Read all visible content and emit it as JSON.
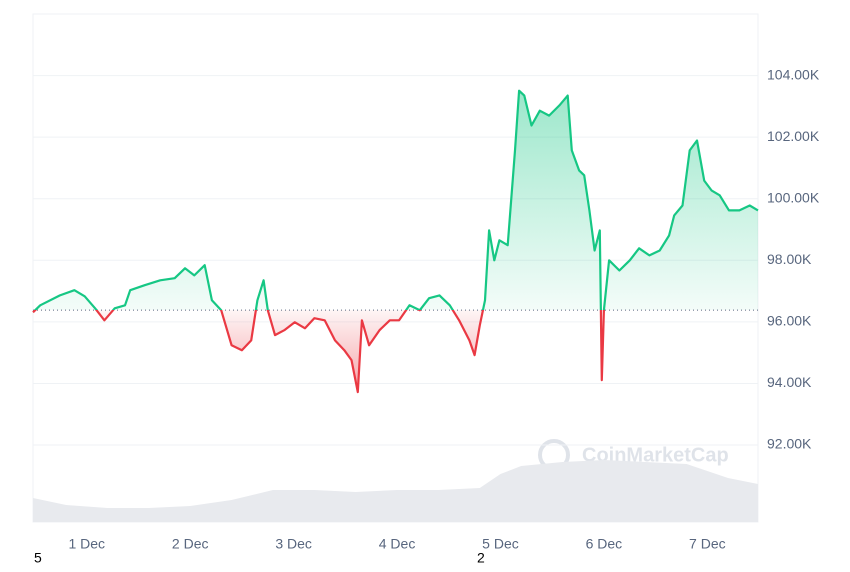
{
  "chart_data": {
    "type": "line",
    "x": [
      0.48,
      0.55,
      0.74,
      0.88,
      0.98,
      1.08,
      1.17,
      1.27,
      1.37,
      1.42,
      1.56,
      1.71,
      1.85,
      1.95,
      2.04,
      2.14,
      2.21,
      2.3,
      2.4,
      2.5,
      2.59,
      2.65,
      2.71,
      2.75,
      2.82,
      2.91,
      3.01,
      3.11,
      3.2,
      3.3,
      3.4,
      3.49,
      3.56,
      3.62,
      3.66,
      3.73,
      3.83,
      3.93,
      4.02,
      4.12,
      4.22,
      4.31,
      4.41,
      4.51,
      4.6,
      4.7,
      4.75,
      4.8,
      4.85,
      4.89,
      4.94,
      4.99,
      5.07,
      5.14,
      5.18,
      5.23,
      5.3,
      5.38,
      5.47,
      5.57,
      5.65,
      5.69,
      5.76,
      5.81,
      5.86,
      5.91,
      5.96,
      5.98,
      6.0,
      6.05,
      6.15,
      6.25,
      6.34,
      6.44,
      6.54,
      6.63,
      6.68,
      6.76,
      6.83,
      6.9,
      6.97,
      7.04,
      7.12,
      7.21,
      7.31,
      7.41,
      7.49
    ],
    "values": [
      96.31,
      96.54,
      96.86,
      97.03,
      96.83,
      96.44,
      96.05,
      96.44,
      96.54,
      97.03,
      97.19,
      97.35,
      97.42,
      97.74,
      97.51,
      97.84,
      96.7,
      96.38,
      95.24,
      95.08,
      95.4,
      96.7,
      97.35,
      96.38,
      95.57,
      95.73,
      95.99,
      95.79,
      96.12,
      96.05,
      95.4,
      95.08,
      94.76,
      93.72,
      96.05,
      95.24,
      95.73,
      96.05,
      96.05,
      96.54,
      96.38,
      96.77,
      96.86,
      96.54,
      96.05,
      95.4,
      94.92,
      95.89,
      96.7,
      98.97,
      98.0,
      98.65,
      98.49,
      101.57,
      103.51,
      103.35,
      102.38,
      102.86,
      102.7,
      103.03,
      103.35,
      101.57,
      100.92,
      100.76,
      99.62,
      98.32,
      98.97,
      94.11,
      96.38,
      98.0,
      97.67,
      98.0,
      98.39,
      98.16,
      98.32,
      98.81,
      99.46,
      99.78,
      101.57,
      101.89,
      100.59,
      100.27,
      100.11,
      99.62,
      99.62,
      99.78,
      99.62
    ],
    "baseline": 96.38,
    "up_color": "#16c784",
    "down_color": "#ea3943",
    "volume": {
      "x": [
        0.48,
        0.8,
        1.2,
        1.6,
        2.0,
        2.4,
        2.8,
        3.2,
        3.6,
        4.0,
        4.4,
        4.8,
        5.0,
        5.2,
        5.6,
        6.0,
        6.4,
        6.8,
        7.2,
        7.49
      ],
      "values": [
        24,
        17,
        14,
        14,
        16,
        22,
        32,
        32,
        30,
        32,
        32,
        34,
        48,
        56,
        60,
        62,
        60,
        58,
        44,
        38
      ],
      "vlim": [
        0,
        100
      ],
      "color": "#e8eaee"
    },
    "xlim": [
      0.48,
      7.49
    ],
    "xticks": [
      {
        "value": 1,
        "label": "1 Dec"
      },
      {
        "value": 2,
        "label": "2 Dec"
      },
      {
        "value": 3,
        "label": "3 Dec"
      },
      {
        "value": 4,
        "label": "4 Dec"
      },
      {
        "value": 5,
        "label": "5 Dec"
      },
      {
        "value": 6,
        "label": "6 Dec"
      },
      {
        "value": 7,
        "label": "7 Dec"
      }
    ],
    "ylim": [
      89.5,
      106
    ],
    "yticks": [
      {
        "value": 92,
        "label": "92.00K"
      },
      {
        "value": 94,
        "label": "94.00K"
      },
      {
        "value": 96,
        "label": "96.00K"
      },
      {
        "value": 98,
        "label": "98.00K"
      },
      {
        "value": 100,
        "label": "100.00K"
      },
      {
        "value": 102,
        "label": "102.00K"
      },
      {
        "value": 104,
        "label": "104.00K"
      }
    ],
    "grid": true,
    "watermark": "CoinMarketCap",
    "stray_labels": [
      "5",
      "2"
    ]
  }
}
